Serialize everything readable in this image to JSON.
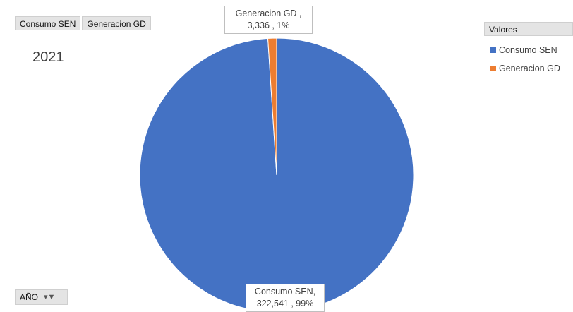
{
  "field_buttons": [
    "Consumo SEN",
    "Generacion GD"
  ],
  "filter": {
    "label": "AÑO",
    "value": "2021"
  },
  "legend": {
    "title": "Valores"
  },
  "colors": {
    "consumo": "#4472c4",
    "generacion": "#ed7d31"
  },
  "labels": {
    "generacion_l1": "Generacion GD ,",
    "generacion_l2": "3,336 , 1%",
    "consumo_l1": "Consumo SEN,",
    "consumo_l2": "322,541 , 99%"
  },
  "chart_data": {
    "type": "pie",
    "title": "",
    "slices": [
      {
        "name": "Consumo SEN",
        "value": 322541,
        "percent": 99
      },
      {
        "name": "Generacion GD",
        "value": 3336,
        "percent": 1
      }
    ],
    "legend_position": "top-right"
  }
}
